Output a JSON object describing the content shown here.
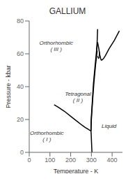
{
  "chart_data": {
    "type": "line",
    "title": "GALLIUM",
    "xlabel": "Temperature - K",
    "ylabel": "Pressure - kbar",
    "xlim": [
      0,
      450
    ],
    "ylim": [
      0,
      80
    ],
    "xticks": [
      0,
      100,
      200,
      300,
      400
    ],
    "yticks": [
      0,
      20,
      40,
      60,
      80
    ],
    "grid": false,
    "series": [
      {
        "color": "#000000",
        "x": [
          303,
          302,
          301,
          300,
          299,
          298
        ],
        "values": [
          0,
          2,
          5,
          8,
          11,
          13
        ]
      },
      {
        "color": "#000000",
        "x": [
          120,
          140,
          170,
          200,
          230,
          255,
          270,
          283,
          292,
          298
        ],
        "values": [
          29,
          27.5,
          25,
          22,
          19,
          16.5,
          15.2,
          14.2,
          13.5,
          13
        ]
      },
      {
        "color": "#000000",
        "x": [
          298,
          300,
          305,
          312,
          320,
          328
        ],
        "values": [
          13,
          20,
          30,
          42,
          53,
          62
        ]
      },
      {
        "color": "#000000",
        "x": [
          298,
          299,
          304,
          310,
          318,
          325,
          330
        ],
        "values": [
          13,
          20,
          30,
          42,
          53,
          62,
          67
        ]
      },
      {
        "color": "#000000",
        "x": [
          325,
          328,
          330
        ],
        "values": [
          62,
          68,
          75
        ]
      },
      {
        "color": "#000000",
        "x": [
          330,
          336,
          341,
          345,
          348
        ],
        "values": [
          67,
          63,
          59,
          57,
          56
        ]
      },
      {
        "color": "#000000",
        "x": [
          348,
          358,
          368,
          385,
          410,
          435
        ],
        "values": [
          56,
          57,
          59,
          63,
          68,
          74
        ]
      }
    ],
    "annotations": [
      {
        "text": "Orthorhombic\n( III )",
        "x": 130,
        "y": 65
      },
      {
        "text": "Tetragonal\n( II )",
        "x": 235,
        "y": 34
      },
      {
        "text": "Orthorhombic\n( I )",
        "x": 85,
        "y": 10
      },
      {
        "text": "Liquid",
        "x": 385,
        "y": 16
      }
    ],
    "arrows": [
      {
        "x_start": 340,
        "y_start": 61,
        "x_end": 334,
        "y_end": 57,
        "color": "#000000"
      }
    ]
  }
}
